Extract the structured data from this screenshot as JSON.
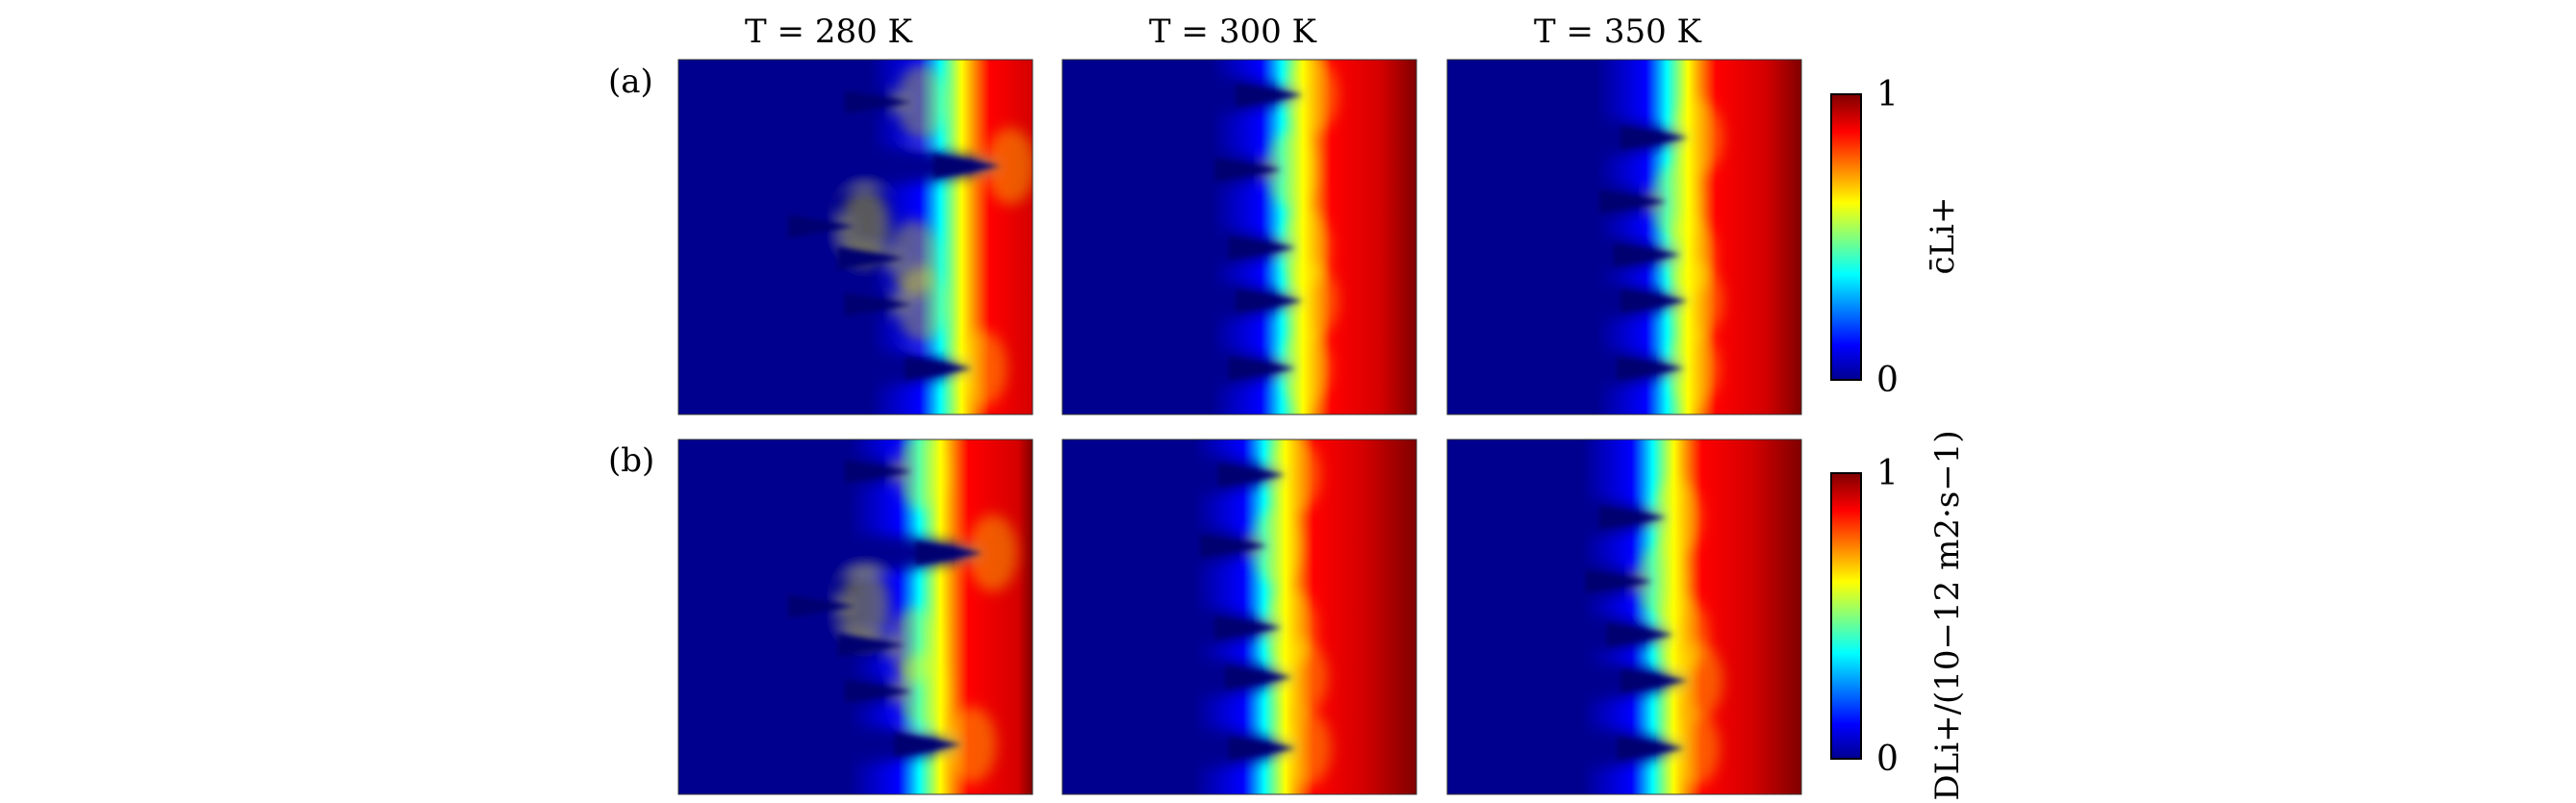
{
  "chart_data": {
    "type": "heatmap",
    "columns": [
      {
        "title": "T = 280 K",
        "temperature_K": 280
      },
      {
        "title": "T = 300 K",
        "temperature_K": 300
      },
      {
        "title": "T = 350 K",
        "temperature_K": 350
      }
    ],
    "rows": [
      {
        "label": "(a)",
        "quantity": "c̄Li+",
        "colorbar_label": "c̄Li+",
        "colorbar_min": "0",
        "colorbar_max": "1",
        "range": [
          0,
          1
        ]
      },
      {
        "label": "(b)",
        "quantity": "DLi+/(10−12 m2·s−1)",
        "colorbar_label": "DLi+/(10−12 m2·s−1)",
        "colorbar_min": "0",
        "colorbar_max": "1",
        "range": [
          0,
          1
        ]
      }
    ],
    "colormap": "jet",
    "colormap_stops": [
      "#00008f",
      "#0000ff",
      "#00ffff",
      "#ffff00",
      "#ff0000",
      "#800000"
    ],
    "fields": {
      "a": [
        {
          "front": 0.84,
          "dendrites": [
            {
              "tip": 0.91,
              "y": 0.3
            },
            {
              "tip": 0.83,
              "y": 0.87
            },
            {
              "tip": 0.66,
              "y": 0.12
            },
            {
              "tip": 0.64,
              "y": 0.56
            },
            {
              "tip": 0.66,
              "y": 0.69
            },
            {
              "tip": 0.5,
              "y": 0.47
            }
          ]
        },
        {
          "front": 0.72,
          "dendrites": [
            {
              "tip": 0.68,
              "y": 0.1
            },
            {
              "tip": 0.62,
              "y": 0.31
            },
            {
              "tip": 0.66,
              "y": 0.53
            },
            {
              "tip": 0.68,
              "y": 0.68
            },
            {
              "tip": 0.66,
              "y": 0.87
            }
          ]
        },
        {
          "front": 0.72,
          "dendrites": [
            {
              "tip": 0.68,
              "y": 0.22
            },
            {
              "tip": 0.62,
              "y": 0.4
            },
            {
              "tip": 0.66,
              "y": 0.55
            },
            {
              "tip": 0.68,
              "y": 0.68
            },
            {
              "tip": 0.67,
              "y": 0.87
            }
          ]
        }
      ],
      "b": [
        {
          "front": 0.78,
          "dendrites": [
            {
              "tip": 0.86,
              "y": 0.32
            },
            {
              "tip": 0.8,
              "y": 0.86
            },
            {
              "tip": 0.66,
              "y": 0.09
            },
            {
              "tip": 0.64,
              "y": 0.58
            },
            {
              "tip": 0.66,
              "y": 0.71
            },
            {
              "tip": 0.5,
              "y": 0.47
            }
          ]
        },
        {
          "front": 0.67,
          "dendrites": [
            {
              "tip": 0.63,
              "y": 0.1
            },
            {
              "tip": 0.58,
              "y": 0.3
            },
            {
              "tip": 0.62,
              "y": 0.53
            },
            {
              "tip": 0.65,
              "y": 0.67
            },
            {
              "tip": 0.66,
              "y": 0.87
            }
          ]
        },
        {
          "front": 0.68,
          "dendrites": [
            {
              "tip": 0.62,
              "y": 0.22
            },
            {
              "tip": 0.58,
              "y": 0.4
            },
            {
              "tip": 0.64,
              "y": 0.55
            },
            {
              "tip": 0.68,
              "y": 0.68
            },
            {
              "tip": 0.67,
              "y": 0.87
            }
          ]
        }
      ]
    }
  }
}
